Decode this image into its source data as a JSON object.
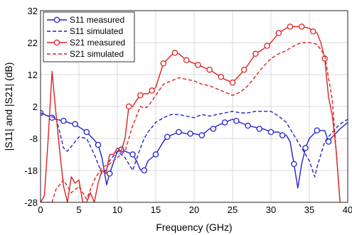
{
  "chart_data": {
    "type": "line",
    "xlabel": "Frequency (GHz)",
    "ylabel": "|S11| and |S21| (dB)",
    "xlim": [
      0,
      40
    ],
    "ylim": [
      -28,
      32
    ],
    "xticks": [
      0,
      5,
      10,
      15,
      20,
      25,
      30,
      35,
      40
    ],
    "yticks": [
      -28,
      -18,
      -8,
      2,
      12,
      22,
      32
    ],
    "grid": true,
    "legend_position": "top-left",
    "series": [
      {
        "name": "S11 measured",
        "color": "#2222cc",
        "line": "solid",
        "marker": "circle",
        "marker_x": [
          0,
          1.5,
          3,
          4.5,
          6,
          7.5,
          9,
          10.5,
          12,
          13.5,
          15,
          16.5,
          18,
          19.5,
          21,
          22.5,
          24,
          25.5,
          27,
          28.5,
          30,
          31.5,
          33,
          34.5,
          36,
          37.5
        ],
        "x": [
          0,
          1,
          1.5,
          2,
          3,
          4,
          4.5,
          5,
          6,
          7,
          7.5,
          8,
          8.6,
          9,
          10,
          10.5,
          11,
          12,
          12.5,
          13,
          13.5,
          14,
          15,
          16,
          16.5,
          17,
          18,
          19,
          19.5,
          20,
          21,
          22,
          22.5,
          23,
          24,
          25,
          25.5,
          26,
          27,
          28,
          28.5,
          29,
          30,
          31,
          31.5,
          32,
          32.5,
          33,
          33.5,
          34,
          34.5,
          35,
          36,
          37,
          37.5,
          38,
          39,
          40
        ],
        "y": [
          0,
          -1,
          -1.5,
          -2,
          -2.5,
          -3.3,
          -3.5,
          -4.4,
          -6,
          -8.5,
          -10,
          -14,
          -22.5,
          -19,
          -12,
          -11.5,
          -12,
          -13,
          -15,
          -17.8,
          -18,
          -15,
          -13,
          -9,
          -7.5,
          -7,
          -6,
          -6.5,
          -6.5,
          -6.5,
          -7,
          -5,
          -5,
          -4,
          -3,
          -2,
          -2.5,
          -3,
          -4,
          -4.5,
          -5,
          -5,
          -6,
          -6,
          -7,
          -7,
          -9,
          -16,
          -23.5,
          -16,
          -11,
          -8,
          -5.5,
          -5.5,
          -9,
          -7.5,
          -5,
          -3
        ]
      },
      {
        "name": "S11 simulated",
        "color": "#2222cc",
        "line": "dashed",
        "x": [
          0,
          1,
          2,
          2.5,
          3,
          3.5,
          4,
          5,
          6,
          7,
          8,
          8.5,
          9,
          10,
          11,
          12,
          13,
          13.5,
          14,
          15,
          16,
          17,
          18,
          19,
          20,
          21,
          22,
          23,
          24,
          25,
          26,
          27,
          28,
          29,
          30,
          31,
          32,
          33,
          34,
          35,
          35.7,
          36,
          37,
          38,
          39,
          40
        ],
        "y": [
          0,
          -1,
          -1.5,
          -6,
          -11,
          -12,
          -10.5,
          -7.5,
          -8,
          -13,
          -19,
          -18,
          -15,
          -12,
          -14,
          -18,
          -11,
          -8,
          -6,
          -3,
          -1.5,
          -0.5,
          -0.5,
          -1,
          -1.5,
          -0.5,
          -1,
          -0.5,
          0,
          0.5,
          0,
          0,
          0.5,
          0.5,
          0.5,
          -1,
          -3,
          -7,
          -11,
          -15,
          -20,
          -17,
          -9,
          -6,
          -3.5,
          -2
        ]
      },
      {
        "name": "S21 measured",
        "color": "#dd2222",
        "line": "solid",
        "marker": "circle",
        "marker_x": [
          11.5,
          13,
          14.5,
          16,
          17.5,
          19,
          20.5,
          22,
          23.5,
          25,
          26.5,
          28,
          29.5,
          31,
          32.5,
          34,
          35.5,
          37
        ],
        "x": [
          0,
          0.5,
          1,
          1.5,
          2,
          2.5,
          3,
          3.5,
          4,
          4.5,
          5,
          5.5,
          6,
          6.5,
          7,
          7.5,
          8,
          8.5,
          9,
          9.5,
          10,
          10.5,
          11,
          11.5,
          12,
          12.5,
          13,
          13.5,
          14,
          14.5,
          15,
          16,
          17,
          17.5,
          18,
          19,
          20,
          21,
          22,
          23,
          24,
          25,
          26,
          27,
          28,
          29,
          30,
          31,
          32,
          32.5,
          33,
          34,
          35,
          35.5,
          36,
          36.5,
          37,
          37.5,
          38,
          38.5,
          39
        ],
        "y": [
          -28,
          -26,
          -8,
          13,
          0,
          -12,
          -23,
          -28,
          -20,
          -22,
          -21,
          -28,
          -28,
          -25,
          -28,
          -22,
          -18,
          -19,
          -13,
          -13,
          -11,
          -12,
          -8,
          2,
          2,
          4,
          5.5,
          6,
          6,
          7,
          8,
          15.5,
          18,
          18.8,
          18.5,
          16.5,
          15.5,
          14.5,
          13.5,
          12,
          10.5,
          9.5,
          12,
          15,
          18.5,
          20,
          22,
          25,
          26.5,
          27,
          27,
          27,
          26.5,
          25.5,
          25,
          22,
          17,
          5,
          -1,
          -12,
          -28
        ]
      },
      {
        "name": "S21 simulated",
        "color": "#dd2222",
        "line": "dashed",
        "x": [
          0,
          1.5,
          2,
          3,
          4,
          5,
          6,
          7,
          8,
          9,
          10,
          11,
          11.5,
          12,
          13,
          13.5,
          14,
          15,
          16,
          17,
          18,
          19,
          20,
          21,
          22,
          23,
          24,
          25,
          26,
          27,
          28,
          29,
          30,
          31,
          32,
          33,
          34,
          35,
          36,
          37,
          38,
          39
        ],
        "y": [
          -28,
          -28,
          -24,
          -21,
          -25,
          -23,
          -27,
          -21,
          -17,
          -16,
          -14,
          -12,
          -8,
          -4,
          2,
          1.5,
          2,
          5.5,
          9,
          10,
          11,
          10.5,
          10,
          9,
          8.5,
          7.5,
          6.5,
          5.5,
          6.5,
          8.5,
          11.5,
          14.5,
          17,
          18.5,
          19.5,
          21,
          22,
          22,
          21.5,
          18,
          4,
          -28
        ]
      }
    ]
  }
}
